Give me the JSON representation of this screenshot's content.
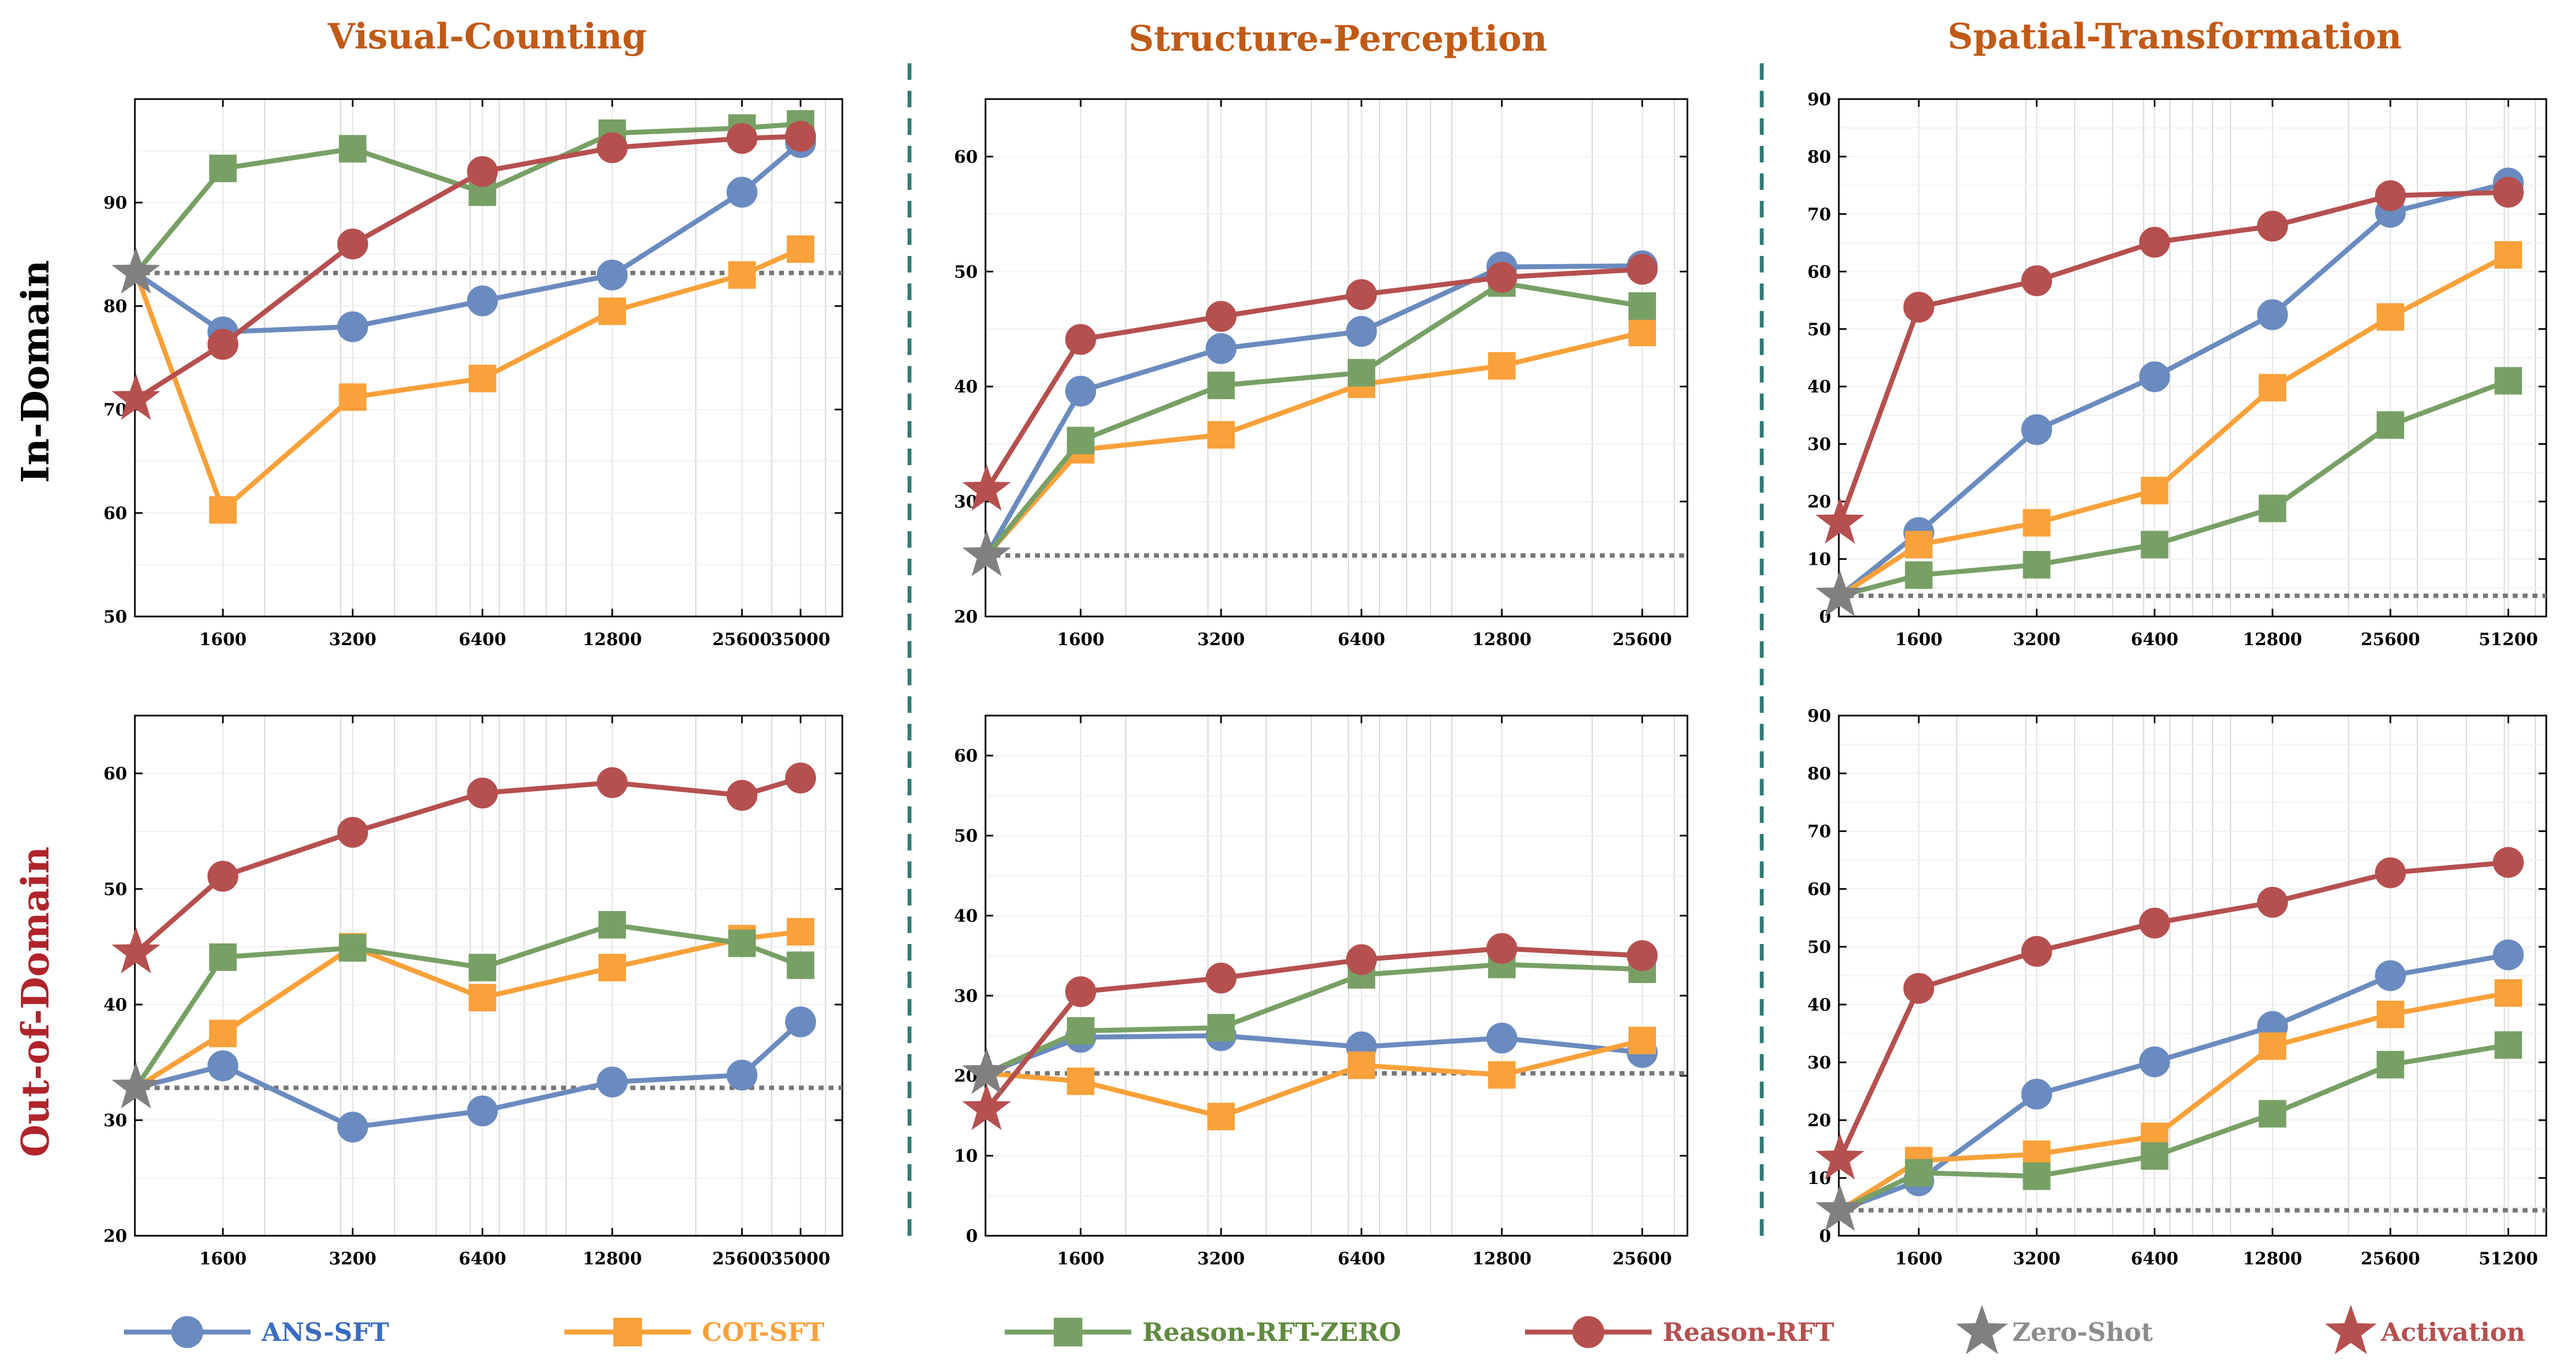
{
  "column_titles": [
    "Visual-Counting",
    "Structure-Perception",
    "Spatial-Transformation"
  ],
  "row_titles": [
    "In-Domain",
    "Out-of-Domain"
  ],
  "colors": {
    "ans_sft": "#6a8bbf",
    "cot_sft": "#f9a13a",
    "rft_zero": "#78a065",
    "rft": "#b5504f",
    "zero_shot": "#808080",
    "activation": "#b5504f",
    "column_title": "#c05a17",
    "row_title_in": "#000000",
    "row_title_out": "#b0242a",
    "divider": "#2e7a73"
  },
  "legend": [
    {
      "key": "ans_sft",
      "label": "ANS-SFT",
      "marker": "circle",
      "line": true,
      "color": "#6a8bbf",
      "text_color": "#3a6cbf"
    },
    {
      "key": "cot_sft",
      "label": "COT-SFT",
      "marker": "square",
      "line": true,
      "color": "#f9a13a",
      "text_color": "#f9a13a"
    },
    {
      "key": "rft_zero",
      "label": "Reason-RFT-ZERO",
      "marker": "square",
      "line": true,
      "color": "#78a065",
      "text_color": "#5f8a3e"
    },
    {
      "key": "rft",
      "label": "Reason-RFT",
      "marker": "circle",
      "line": true,
      "color": "#b5504f",
      "text_color": "#b5504f"
    },
    {
      "key": "zero_shot",
      "label": "Zero-Shot",
      "marker": "star",
      "line": false,
      "color": "#808080",
      "text_color": "#8c8c8c"
    },
    {
      "key": "activation",
      "label": "Activation",
      "marker": "star",
      "line": false,
      "color": "#b5504f",
      "text_color": "#b5504f"
    }
  ],
  "chart_data": [
    {
      "id": "vc-in",
      "type": "line",
      "row": 0,
      "col": 0,
      "xscale": "log",
      "x": [
        1600,
        3200,
        6400,
        12800,
        25600,
        35000
      ],
      "xticks": [
        1600,
        3200,
        6400,
        12800,
        25600,
        35000
      ],
      "xtick_labels": [
        "1600",
        "3200",
        "6400",
        "12800",
        "25600",
        "35000"
      ],
      "ylim": [
        50,
        100
      ],
      "yticks": [
        50,
        60,
        70,
        80,
        90
      ],
      "zero_shot": 83.2,
      "activation": 71.0,
      "series": [
        {
          "key": "ans_sft",
          "start": 83.2,
          "values": [
            77.5,
            78.0,
            80.5,
            83.0,
            91.0,
            95.8
          ]
        },
        {
          "key": "cot_sft",
          "start": 83.2,
          "values": [
            60.3,
            71.2,
            73.0,
            79.5,
            83.0,
            85.5
          ]
        },
        {
          "key": "rft_zero",
          "start": 83.2,
          "values": [
            93.3,
            95.2,
            91.0,
            96.7,
            97.2,
            97.6
          ]
        },
        {
          "key": "rft",
          "start": 71.0,
          "values": [
            76.3,
            86.0,
            93.0,
            95.3,
            96.2,
            96.4
          ]
        }
      ]
    },
    {
      "id": "sp-in",
      "type": "line",
      "row": 0,
      "col": 1,
      "xscale": "log",
      "x": [
        1600,
        3200,
        6400,
        12800,
        25600
      ],
      "xticks": [
        1600,
        3200,
        6400,
        12800,
        25600
      ],
      "xtick_labels": [
        "1600",
        "3200",
        "6400",
        "12800",
        "25600"
      ],
      "ylim": [
        20,
        65
      ],
      "yticks": [
        20,
        30,
        40,
        50,
        60
      ],
      "zero_shot": 25.3,
      "activation": 31.0,
      "series": [
        {
          "key": "ans_sft",
          "start": 25.3,
          "values": [
            39.6,
            43.3,
            44.8,
            50.4,
            50.5
          ]
        },
        {
          "key": "cot_sft",
          "start": 25.3,
          "values": [
            34.5,
            35.8,
            40.2,
            41.8,
            44.7
          ]
        },
        {
          "key": "rft_zero",
          "start": 25.3,
          "values": [
            35.3,
            40.1,
            41.2,
            49.0,
            47.0
          ]
        },
        {
          "key": "rft",
          "start": 31.0,
          "values": [
            44.1,
            46.1,
            48.0,
            49.5,
            50.2
          ]
        }
      ]
    },
    {
      "id": "st-in",
      "type": "line",
      "row": 0,
      "col": 2,
      "xscale": "log",
      "x": [
        1600,
        3200,
        6400,
        12800,
        25600,
        51200
      ],
      "xticks": [
        1600,
        3200,
        6400,
        12800,
        25600,
        51200
      ],
      "xtick_labels": [
        "1600",
        "3200",
        "6400",
        "12800",
        "25600",
        "51200"
      ],
      "ylim": [
        0,
        90
      ],
      "yticks": [
        0,
        10,
        20,
        30,
        40,
        50,
        60,
        70,
        80,
        90
      ],
      "zero_shot": 3.6,
      "activation": 16.3,
      "series": [
        {
          "key": "ans_sft",
          "start": 3.6,
          "values": [
            14.6,
            32.5,
            41.7,
            52.5,
            70.3,
            75.4
          ]
        },
        {
          "key": "cot_sft",
          "start": 3.6,
          "values": [
            12.5,
            16.3,
            21.9,
            39.8,
            52.1,
            62.9
          ]
        },
        {
          "key": "rft_zero",
          "start": 3.6,
          "values": [
            7.2,
            9.0,
            12.5,
            18.8,
            33.3,
            41.0
          ]
        },
        {
          "key": "rft",
          "start": 16.3,
          "values": [
            53.8,
            58.4,
            65.1,
            67.9,
            73.2,
            73.8
          ]
        }
      ]
    },
    {
      "id": "vc-out",
      "type": "line",
      "row": 1,
      "col": 0,
      "xscale": "log",
      "x": [
        1600,
        3200,
        6400,
        12800,
        25600,
        35000
      ],
      "xticks": [
        1600,
        3200,
        6400,
        12800,
        25600,
        35000
      ],
      "xtick_labels": [
        "1600",
        "3200",
        "6400",
        "12800",
        "25600",
        "35000"
      ],
      "ylim": [
        20,
        65
      ],
      "yticks": [
        20,
        30,
        40,
        50,
        60
      ],
      "zero_shot": 32.8,
      "activation": 44.5,
      "series": [
        {
          "key": "ans_sft",
          "start": 32.8,
          "values": [
            34.7,
            29.4,
            30.8,
            33.3,
            33.9,
            38.5
          ]
        },
        {
          "key": "cot_sft",
          "start": 32.8,
          "values": [
            37.5,
            45.0,
            40.6,
            43.2,
            45.7,
            46.3
          ]
        },
        {
          "key": "rft_zero",
          "start": 32.8,
          "values": [
            44.1,
            44.9,
            43.2,
            46.9,
            45.3,
            43.4
          ]
        },
        {
          "key": "rft",
          "start": 44.5,
          "values": [
            51.1,
            54.9,
            58.3,
            59.2,
            58.1,
            59.6
          ]
        }
      ]
    },
    {
      "id": "sp-out",
      "type": "line",
      "row": 1,
      "col": 1,
      "xscale": "log",
      "x": [
        1600,
        3200,
        6400,
        12800,
        25600
      ],
      "xticks": [
        1600,
        3200,
        6400,
        12800,
        25600
      ],
      "xtick_labels": [
        "1600",
        "3200",
        "6400",
        "12800",
        "25600"
      ],
      "ylim": [
        0,
        65
      ],
      "yticks": [
        0,
        10,
        20,
        30,
        40,
        50,
        60
      ],
      "zero_shot": 20.3,
      "activation": 15.8,
      "series": [
        {
          "key": "ans_sft",
          "start": 20.3,
          "values": [
            24.8,
            25.0,
            23.6,
            24.7,
            22.9
          ]
        },
        {
          "key": "cot_sft",
          "start": 20.3,
          "values": [
            19.3,
            14.9,
            21.3,
            20.1,
            24.4
          ]
        },
        {
          "key": "rft_zero",
          "start": 20.3,
          "values": [
            25.6,
            26.0,
            32.6,
            33.9,
            33.3
          ]
        },
        {
          "key": "rft",
          "start": 15.8,
          "values": [
            30.5,
            32.2,
            34.5,
            35.9,
            35.0
          ]
        }
      ]
    },
    {
      "id": "st-out",
      "type": "line",
      "row": 1,
      "col": 2,
      "xscale": "log",
      "x": [
        1600,
        3200,
        6400,
        12800,
        25600,
        51200
      ],
      "xticks": [
        1600,
        3200,
        6400,
        12800,
        25600,
        51200
      ],
      "xtick_labels": [
        "1600",
        "3200",
        "6400",
        "12800",
        "25600",
        "51200"
      ],
      "ylim": [
        0,
        90
      ],
      "yticks": [
        0,
        10,
        20,
        30,
        40,
        50,
        60,
        70,
        80,
        90
      ],
      "zero_shot": 4.4,
      "activation": 13.3,
      "series": [
        {
          "key": "ans_sft",
          "start": 4.4,
          "values": [
            9.5,
            24.5,
            30.1,
            36.2,
            45.0,
            48.6
          ]
        },
        {
          "key": "cot_sft",
          "start": 4.4,
          "values": [
            13.0,
            14.1,
            17.2,
            32.8,
            38.3,
            42.0
          ]
        },
        {
          "key": "rft_zero",
          "start": 4.4,
          "values": [
            10.9,
            10.3,
            13.8,
            21.1,
            29.6,
            33.0
          ]
        },
        {
          "key": "rft",
          "start": 13.3,
          "values": [
            42.8,
            49.2,
            54.1,
            57.7,
            62.8,
            64.6
          ]
        }
      ]
    }
  ]
}
